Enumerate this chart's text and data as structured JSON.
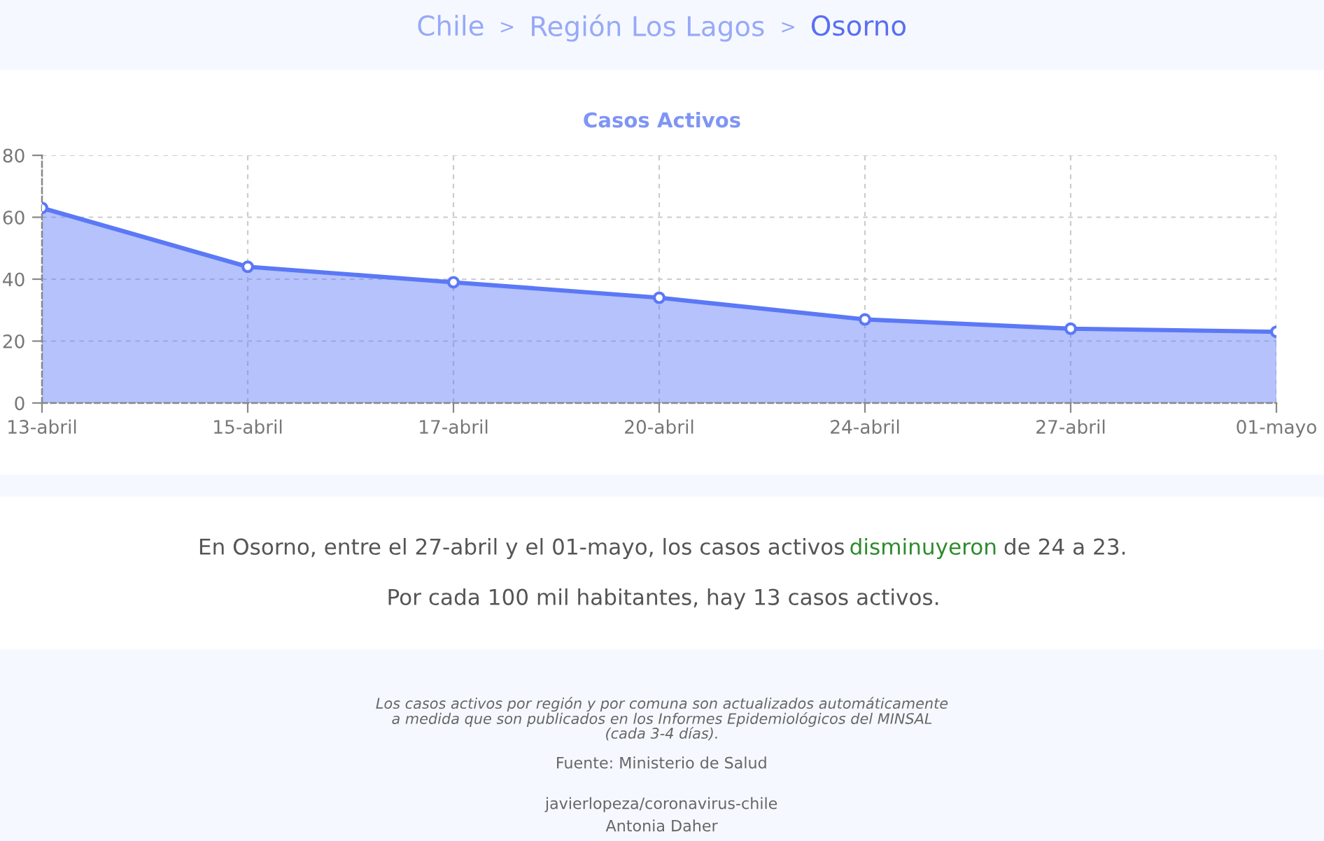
{
  "chart_data": {
    "type": "area",
    "title": "Casos Activos",
    "categories": [
      "13-abril",
      "15-abril",
      "17-abril",
      "20-abril",
      "24-abril",
      "27-abril",
      "01-mayo"
    ],
    "series": [
      {
        "color": "#5b78f6",
        "values": [
          63,
          44,
          39,
          34,
          27,
          24,
          23
        ]
      }
    ],
    "ylim": [
      0,
      80
    ],
    "yticks": [
      0,
      20,
      40,
      60,
      80
    ],
    "grid": true,
    "marker": "circle",
    "annotations": [
      "Chile",
      ">",
      "Región Los Lagos",
      ">",
      "Osorno",
      "En Osorno, entre el 27-abril y el 01-mayo, los casos activos",
      "disminuyeron",
      "de 24 a 23.",
      "Por cada 100 mil habitantes, hay 13 casos activos.",
      "Los casos activos por región y por comuna son actualizados automáticamente\na medida que son publicados en los Informes Epidemiológicos del MINSAL\n(cada 3-4 días).",
      "Fuente: Ministerio de Salud",
      "javierlopeza/coronavirus-chile",
      "Antonia Daher"
    ]
  }
}
